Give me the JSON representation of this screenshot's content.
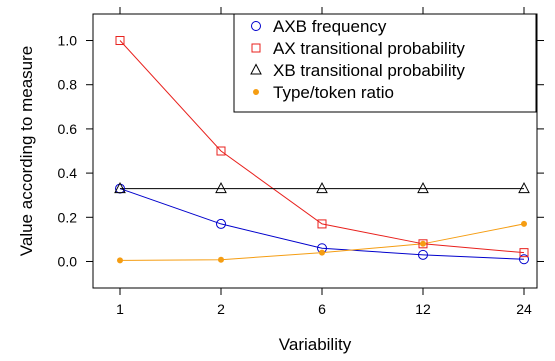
{
  "chart_data": {
    "type": "line",
    "title": "",
    "xlabel": "Variability",
    "ylabel": "Value according to measure",
    "categories": [
      "1",
      "2",
      "6",
      "12",
      "24"
    ],
    "ylim": [
      -0.12,
      1.12
    ],
    "yticks": [
      0.0,
      0.2,
      0.4,
      0.6,
      0.8,
      1.0
    ],
    "ytick_labels": [
      "0.0",
      "0.2",
      "0.4",
      "0.6",
      "0.8",
      "1.0"
    ],
    "grid": false,
    "legend_position": "top-right",
    "series": [
      {
        "name": "AXB frequency",
        "color": "#0000cc",
        "marker": "circle-open",
        "values": [
          0.33,
          0.17,
          0.06,
          0.03,
          0.01
        ]
      },
      {
        "name": "AX transitional probability",
        "color": "#e8201c",
        "marker": "square-open",
        "values": [
          1.0,
          0.5,
          0.17,
          0.08,
          0.04
        ]
      },
      {
        "name": "XB transitional probability",
        "color": "#000000",
        "marker": "triangle-open",
        "values": [
          0.33,
          0.33,
          0.33,
          0.33,
          0.33
        ]
      },
      {
        "name": "Type/token ratio",
        "color": "#f59d12",
        "marker": "dot",
        "values": [
          0.005,
          0.008,
          0.04,
          0.08,
          0.17
        ]
      }
    ]
  }
}
